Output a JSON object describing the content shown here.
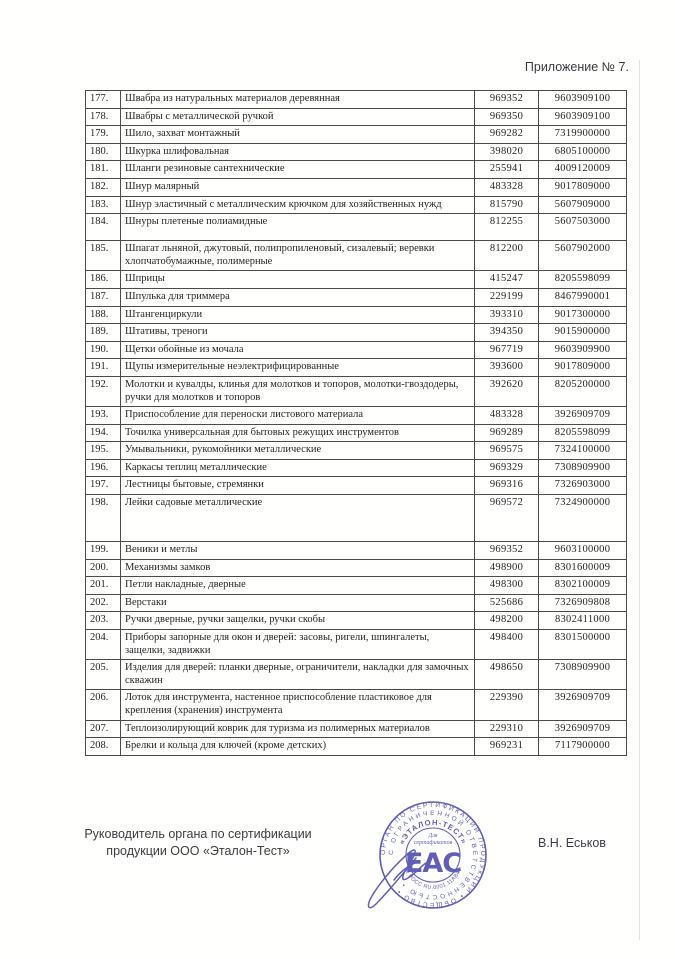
{
  "header": {
    "title": "Приложение № 7."
  },
  "table": {
    "rows": [
      {
        "num": "177.",
        "name": "Швабра из натуральных материалов деревянная",
        "code": "969352",
        "tnved": "9603909100"
      },
      {
        "num": "178.",
        "name": "Швабры с металлической ручкой",
        "code": "969350",
        "tnved": "9603909100"
      },
      {
        "num": "179.",
        "name": "Шило, захват монтажный",
        "code": "969282",
        "tnved": "7319900000"
      },
      {
        "num": "180.",
        "name": "Шкурка шлифовальная",
        "code": "398020",
        "tnved": "6805100000"
      },
      {
        "num": "181.",
        "name": "Шланги резиновые сантехнические",
        "code": "255941",
        "tnved": "4009120009"
      },
      {
        "num": "182.",
        "name": "Шнур малярный",
        "code": "483328",
        "tnved": "9017809000"
      },
      {
        "num": "183.",
        "name": "Шнур эластичный с металлическим крючком для хозяйственных нужд",
        "code": "815790",
        "tnved": "5607909000"
      },
      {
        "num": "184.",
        "name": "Шнуры плетеные полиамидные",
        "code": "812255",
        "tnved": "5607503000",
        "size": "mid"
      },
      {
        "num": "185.",
        "name": "Шпагат льняной, джутовый, полипропиленовый, сизалевый; веревки хлопчатобумажные, полимерные",
        "code": "812200",
        "tnved": "5607902000"
      },
      {
        "num": "186.",
        "name": "Шприцы",
        "code": "415247",
        "tnved": "8205598099"
      },
      {
        "num": "187.",
        "name": "Шпулька для триммера",
        "code": "229199",
        "tnved": "8467990001"
      },
      {
        "num": "188.",
        "name": "Штангенциркули",
        "code": "393310",
        "tnved": "9017300000"
      },
      {
        "num": "189.",
        "name": "Штативы, треноги",
        "code": "394350",
        "tnved": "9015900000"
      },
      {
        "num": "190.",
        "name": "Щетки обойные из мочала",
        "code": "967719",
        "tnved": "9603909900"
      },
      {
        "num": "191.",
        "name": "Щупы измерительные неэлектрифицированные",
        "code": "393600",
        "tnved": "9017809000"
      },
      {
        "num": "192.",
        "name": "Молотки и кувалды, клинья для молотков и топоров, молотки-гвоздодеры, ручки для молотков и топоров",
        "code": "392620",
        "tnved": "8205200000"
      },
      {
        "num": "193.",
        "name": "Приспособление для переноски листового материала",
        "code": "483328",
        "tnved": "3926909709"
      },
      {
        "num": "194.",
        "name": "Точилка универсальная для бытовых режущих инструментов",
        "code": "969289",
        "tnved": "8205598099"
      },
      {
        "num": "195.",
        "name": "Умывальники, рукомойники металлические",
        "code": "969575",
        "tnved": "7324100000"
      },
      {
        "num": "196.",
        "name": "Каркасы теплиц металлические",
        "code": "969329",
        "tnved": "7308909900"
      },
      {
        "num": "197.",
        "name": "Лестницы бытовые, стремянки",
        "code": "969316",
        "tnved": "7326903000"
      },
      {
        "num": "198.",
        "name": "Лейки садовые металлические",
        "code": "969572",
        "tnved": "7324900000",
        "size": "tall"
      },
      {
        "num": "199.",
        "name": "Веники и метлы",
        "code": "969352",
        "tnved": "9603100000"
      },
      {
        "num": "200.",
        "name": "Механизмы замков",
        "code": "498900",
        "tnved": "8301600009"
      },
      {
        "num": "201.",
        "name": "Петли накладные, дверные",
        "code": "498300",
        "tnved": "8302100009"
      },
      {
        "num": "202.",
        "name": "Верстаки",
        "code": "525686",
        "tnved": "7326909808"
      },
      {
        "num": "203.",
        "name": "Ручки дверные, ручки защелки, ручки скобы",
        "code": "498200",
        "tnved": "8302411000"
      },
      {
        "num": "204.",
        "name": "Приборы запорные для окон и дверей: засовы, ригели, шпингалеты, защелки, задвижки",
        "code": "498400",
        "tnved": "8301500000"
      },
      {
        "num": "205.",
        "name": "Изделия для дверей: планки дверные, ограничители, накладки для замочных скважин",
        "code": "498650",
        "tnved": "7308909900"
      },
      {
        "num": "206.",
        "name": "Лоток для инструмента, настенное приспособление пластиковое для крепления (хранения) инструмента",
        "code": "229390",
        "tnved": "3926909709"
      },
      {
        "num": "207.",
        "name": "Теплоизолирующий коврик для туризма из полимерных материалов",
        "code": "229310",
        "tnved": "3926909709"
      },
      {
        "num": "208.",
        "name": "Брелки и кольца для ключей (кроме детских)",
        "code": "969231",
        "tnved": "7117900000"
      }
    ]
  },
  "footer": {
    "left_line1": "Руководитель органа по сертификации",
    "left_line2": "продукции ООО «Эталон-Тест»",
    "signer": "В.Н. Еськов"
  },
  "stamp": {
    "ink_color": "#4949ac",
    "ring_outer": "ОРГАН ПО СЕРТИФИКАЦИИ ПРОДУКЦИИ  •  ОБЩЕСТВО  •",
    "ring_middle": "С ОГРАНИЧЕННОЙ ОТВЕТСТВЕННОСТЬЮ  •",
    "ring_inner_top": "«ЭТАЛОН-ТЕСТ»",
    "ring_inner_bottom": "№ РОСС RU.0001.11АВ45",
    "center_line1": "Для",
    "center_line2": "сертификатов",
    "center_logo": "ЕАС"
  }
}
